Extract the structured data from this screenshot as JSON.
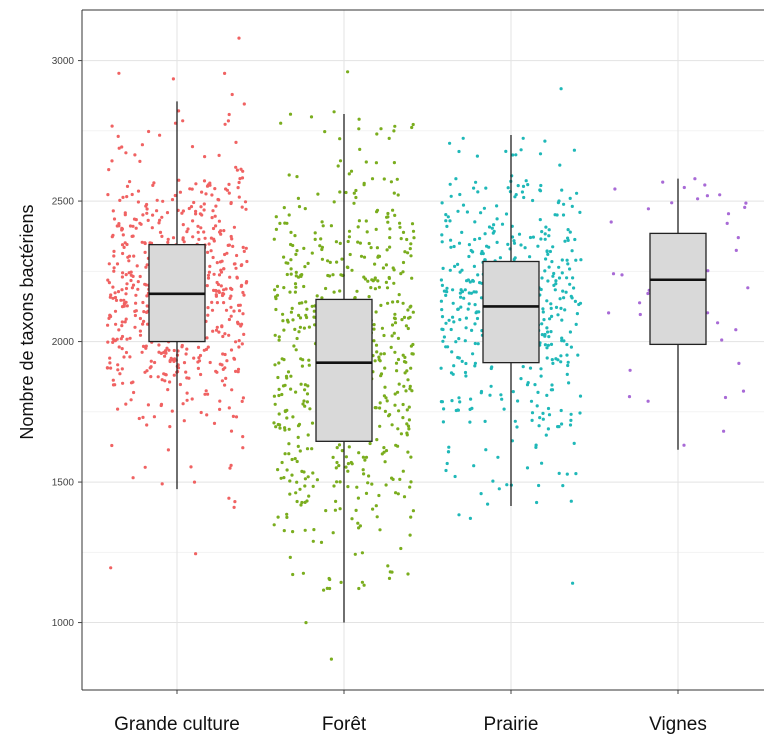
{
  "chart_data": {
    "type": "boxplot",
    "ylabel": "Nombre de taxons bactériens",
    "ylim": [
      760,
      3180
    ],
    "yticks": [
      1000,
      1500,
      2000,
      2500,
      3000
    ],
    "ytick_labels": [
      "1000",
      "1500",
      "2000",
      "2500",
      "3000"
    ],
    "grid": true,
    "categories": [
      "Grande culture",
      "Forêt",
      "Prairie",
      "Vignes"
    ],
    "colors": [
      "#f06262",
      "#7aad1e",
      "#1fb8b8",
      "#a86ad6"
    ],
    "box_color": "#d9d9d9",
    "series": [
      {
        "category": "Grande culture",
        "q1": 2000,
        "median": 2170,
        "q3": 2345,
        "whisker_low": 1475,
        "whisker_high": 2855,
        "n_points": 640,
        "points_range": [
          1400,
          2960
        ],
        "outliers": [
          3080,
          1195,
          1245,
          1410,
          1500
        ]
      },
      {
        "category": "Forêt",
        "q1": 1645,
        "median": 1925,
        "q3": 2150,
        "whisker_low": 1000,
        "whisker_high": 2810,
        "n_points": 620,
        "points_range": [
          1100,
          2820
        ],
        "outliers": [
          2960,
          1000,
          870
        ]
      },
      {
        "category": "Prairie",
        "q1": 1925,
        "median": 2125,
        "q3": 2285,
        "whisker_low": 1415,
        "whisker_high": 2735,
        "n_points": 480,
        "points_range": [
          1350,
          2740
        ],
        "outliers": [
          2900,
          1140
        ]
      },
      {
        "category": "Vignes",
        "q1": 1990,
        "median": 2220,
        "q3": 2385,
        "whisker_low": 1615,
        "whisker_high": 2580,
        "n_points": 45,
        "points_range": [
          1610,
          2580
        ],
        "outliers": []
      }
    ]
  }
}
